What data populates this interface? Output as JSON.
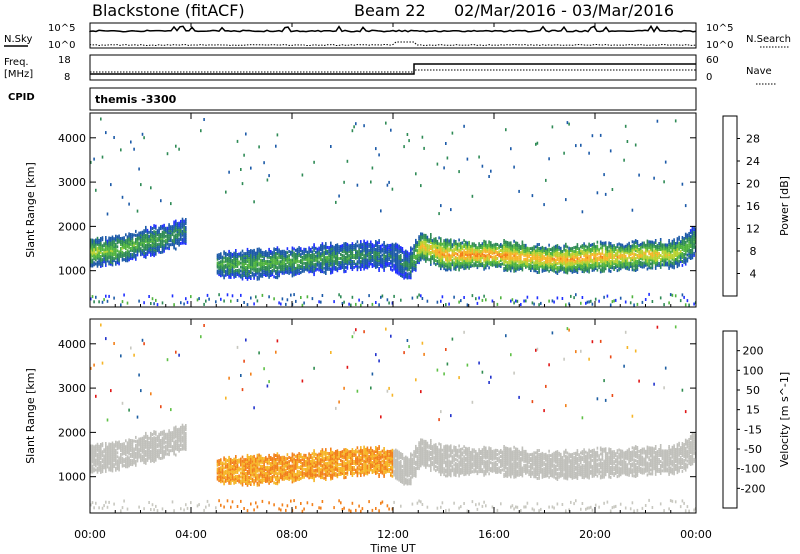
{
  "header": {
    "station": "Blackstone (fitACF)",
    "beam": "Beam 22",
    "dates": "02/Mar/2016 - 03/Mar/2016"
  },
  "status_panels": {
    "nsky_label": "N.Sky",
    "nsky_ticks": [
      "10^5",
      "10^0"
    ],
    "nsearch_label": "N.Search",
    "nsearch_ticks": [
      "10^5",
      "10^0"
    ],
    "freq_label_1": "Freq.",
    "freq_label_2": "[MHz]",
    "freq_ticks": [
      "18",
      "8"
    ],
    "nave_label": "Nave",
    "nave_ticks": [
      "60",
      "0"
    ],
    "cpid_label": "CPID",
    "cpid_value": "themis -3300"
  },
  "colors": {
    "power_scale": [
      "#1f2fff",
      "#1c5aa8",
      "#2e8a55",
      "#4fb33e",
      "#b7d230",
      "#f6b526",
      "#f47d18",
      "#ef4a14",
      "#e21a1a"
    ],
    "velocity_scale": [
      "#2233cc",
      "#1d5ea2",
      "#2f8c4f",
      "#5fc046",
      "#c8c8c0",
      "#f6b526",
      "#f2801a",
      "#ea4a16",
      "#e01515"
    ],
    "ground_scatter": "#c0c0bb"
  },
  "chart_data": [
    {
      "type": "heatmap",
      "name": "Power",
      "xlabel": "Time UT",
      "ylabel": "Slant Range [km]",
      "x_ticks": [
        "00:00",
        "04:00",
        "08:00",
        "12:00",
        "16:00",
        "20:00",
        "00:00"
      ],
      "xlim_hours": [
        0,
        24
      ],
      "y_ticks": [
        1000,
        2000,
        3000,
        4000
      ],
      "ylim": [
        180,
        4560
      ],
      "colorbar_label": "Power [dB]",
      "colorbar_ticks": [
        4,
        8,
        12,
        16,
        20,
        24,
        28
      ],
      "colorbar_range": [
        0,
        32
      ],
      "echo_band": {
        "time_hours": [
          0,
          1,
          2,
          3,
          3.8,
          4.3,
          5,
          6,
          7,
          8,
          9,
          10,
          11,
          12,
          12.6,
          13.1,
          14,
          15,
          16,
          17,
          18,
          19,
          20,
          21,
          22,
          23,
          23.5,
          24
        ],
        "center_km": [
          1450,
          1500,
          1650,
          1780,
          1950,
          null,
          1180,
          1180,
          1200,
          1250,
          1300,
          1350,
          1400,
          1350,
          1150,
          1600,
          1400,
          1400,
          1400,
          1350,
          1300,
          1300,
          1350,
          1350,
          1400,
          1400,
          1500,
          1750
        ],
        "dominant_power_db": [
          18,
          16,
          14,
          12,
          8,
          null,
          12,
          14,
          14,
          14,
          12,
          12,
          10,
          8,
          10,
          22,
          24,
          26,
          26,
          24,
          24,
          24,
          24,
          22,
          22,
          20,
          16,
          12
        ]
      }
    },
    {
      "type": "heatmap",
      "name": "Velocity",
      "xlabel": "Time UT",
      "ylabel": "Slant Range [km]",
      "x_ticks": [
        "00:00",
        "04:00",
        "08:00",
        "12:00",
        "16:00",
        "20:00",
        "00:00"
      ],
      "xlim_hours": [
        0,
        24
      ],
      "y_ticks": [
        1000,
        2000,
        3000,
        4000
      ],
      "ylim": [
        180,
        4560
      ],
      "colorbar_label": "Velocity [m s^-1]",
      "colorbar_ticks": [
        200,
        100,
        50,
        15,
        -15,
        -50,
        -100,
        -200
      ],
      "dominant_velocity": {
        "time_hours": [
          0,
          2,
          4,
          5,
          8,
          11,
          12,
          13,
          16,
          20,
          24
        ],
        "velocity_ms": [
          0,
          0,
          0,
          -50,
          -50,
          -50,
          0,
          0,
          0,
          0,
          0
        ]
      }
    }
  ]
}
